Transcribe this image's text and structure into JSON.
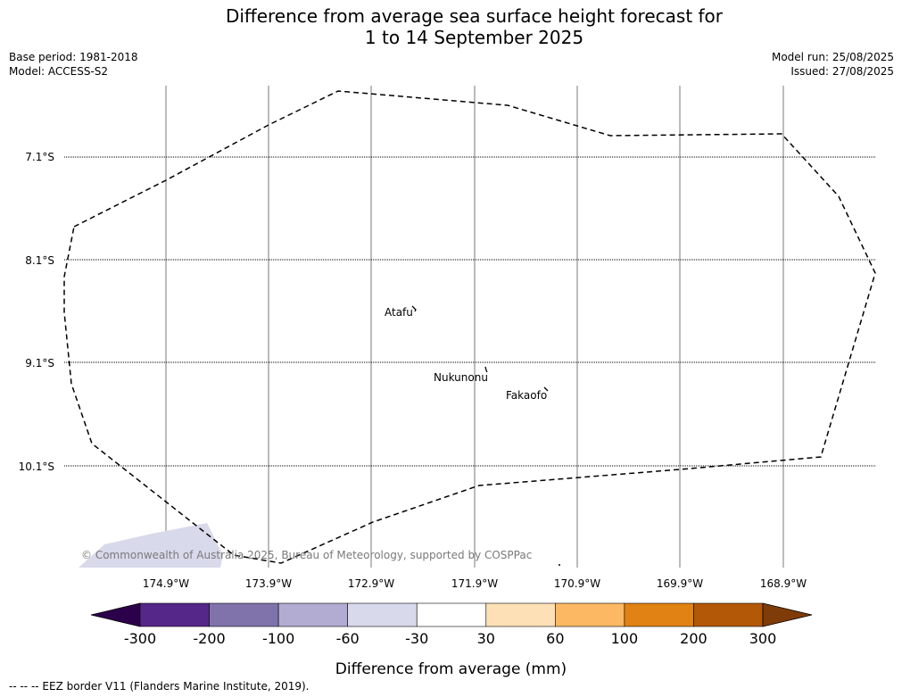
{
  "title": {
    "line1": "Difference from average sea surface height forecast for",
    "line2": "1 to 14 September 2025"
  },
  "meta": {
    "base_period": "Base period: 1981-2018",
    "model": "Model: ACCESS-S2",
    "model_run": "Model run: 25/08/2025",
    "issued": "Issued: 27/08/2025"
  },
  "map": {
    "lon_labels": [
      "174.9°W",
      "173.9°W",
      "172.9°W",
      "171.9°W",
      "170.9°W",
      "169.9°W",
      "168.9°W"
    ],
    "lat_labels": [
      "7.1°S",
      "8.1°S",
      "9.1°S",
      "10.1°S"
    ],
    "islands": [
      {
        "name": "Atafu"
      },
      {
        "name": "Nukunonu"
      },
      {
        "name": "Fakaofo"
      }
    ],
    "copyright": "© Commonwealth of Australia 2025, Bureau of Meteorology, supported by COSPPac"
  },
  "colorbar": {
    "label": "Difference from average (mm)",
    "ticks": [
      "-300",
      "-200",
      "-100",
      "-60",
      "-30",
      "30",
      "60",
      "100",
      "200",
      "300"
    ],
    "colors": {
      "below": "#2d004b",
      "bins": [
        "#542788",
        "#8073ac",
        "#b2abd2",
        "#d8daeb",
        "#ffffff",
        "#fee0b6",
        "#fdb863",
        "#e08214",
        "#b35806"
      ],
      "above": "#7f3b08"
    }
  },
  "legend": {
    "eez": "--  --  -- EEZ border V11 (Flanders Marine Institute, 2019)."
  }
}
